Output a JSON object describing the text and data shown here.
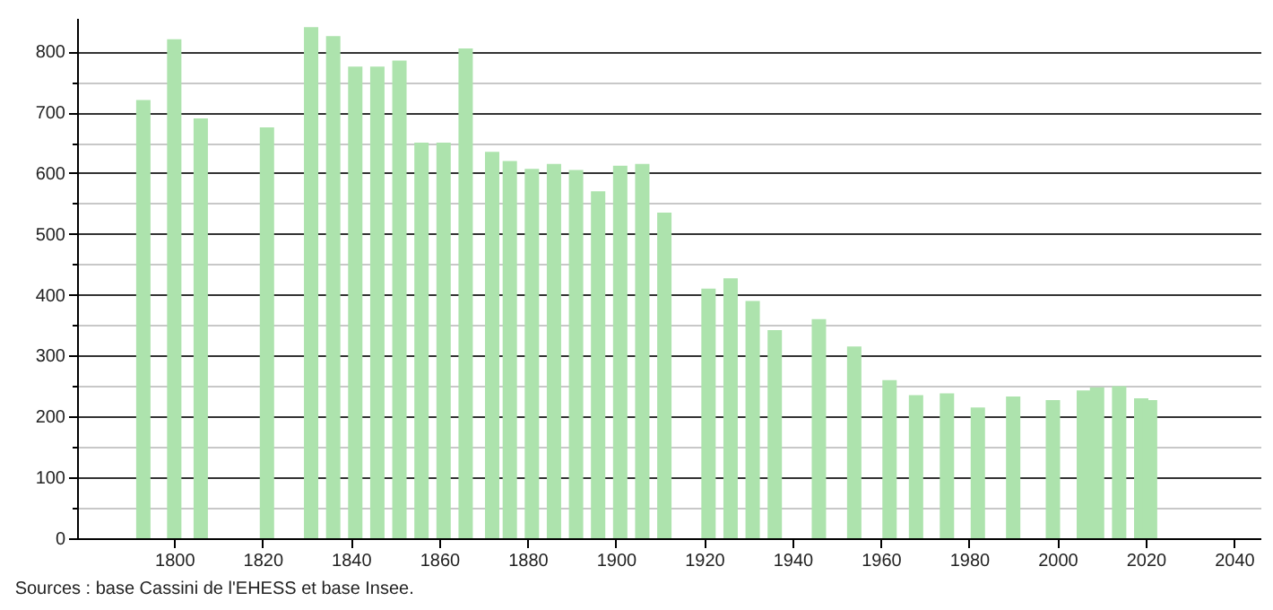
{
  "chart_data": {
    "type": "bar",
    "color": "#ade3ad",
    "x": [
      1793,
      1800,
      1806,
      1821,
      1831,
      1836,
      1841,
      1846,
      1851,
      1856,
      1861,
      1866,
      1872,
      1876,
      1881,
      1886,
      1891,
      1896,
      1901,
      1906,
      1911,
      1921,
      1926,
      1931,
      1936,
      1946,
      1954,
      1962,
      1968,
      1975,
      1982,
      1990,
      1999,
      2006,
      2009,
      2014,
      2019,
      2021
    ],
    "values": [
      720,
      820,
      690,
      675,
      840,
      825,
      775,
      775,
      785,
      650,
      650,
      805,
      635,
      620,
      607,
      615,
      605,
      570,
      612,
      615,
      535,
      410,
      427,
      390,
      342,
      360,
      315,
      260,
      235,
      238,
      215,
      233,
      227,
      243,
      248,
      250,
      230,
      227
    ],
    "xlim": [
      1778,
      2046
    ],
    "xticks": [
      1800,
      1820,
      1840,
      1860,
      1880,
      1900,
      1920,
      1940,
      1960,
      1980,
      2000,
      2020,
      2040
    ],
    "ylim": [
      0,
      855
    ],
    "yticks": [
      0,
      {
        "value": 50,
        "label": null
      },
      100,
      {
        "value": 150,
        "label": null
      },
      200,
      {
        "value": 250,
        "label": null
      },
      300,
      {
        "value": 350,
        "label": null
      },
      400,
      {
        "value": 450,
        "label": null
      },
      500,
      {
        "value": 550,
        "label": null
      },
      600,
      {
        "value": 650,
        "label": null
      },
      700,
      {
        "value": 750,
        "label": null
      },
      800
    ],
    "grid": "y",
    "annotations": [
      "Sources : base Cassini de l'EHESS et base Insee."
    ]
  }
}
